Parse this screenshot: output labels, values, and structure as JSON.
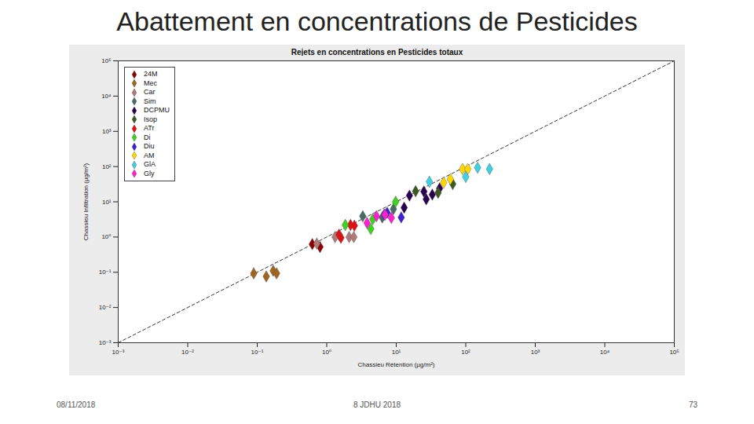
{
  "slide_title": "Abattement en concentrations de Pesticides",
  "footer": [
    "08/11/2018",
    "8 JDHU 2018",
    "73"
  ],
  "chart_data": {
    "type": "scatter",
    "title": "Rejets en concentrations en Pesticides totaux",
    "x_label": "Chassieu Rétention (µg/m²)",
    "y_label": "Chassieu Infiltration (µg/m²)",
    "log": true,
    "grid": false,
    "legend": "top-left",
    "marker": "diamond",
    "xlim": [
      0.001,
      100000
    ],
    "ylim": [
      0.001,
      100000
    ],
    "xticks": [
      {
        "value": 0.001,
        "label": "10⁻³"
      },
      {
        "value": 0.01,
        "label": "10⁻²"
      },
      {
        "value": 0.1,
        "label": "10⁻¹"
      },
      {
        "value": 1,
        "label": "10⁰"
      },
      {
        "value": 10,
        "label": "10¹"
      },
      {
        "value": 100,
        "label": "10²"
      },
      {
        "value": 1000,
        "label": "10³"
      },
      {
        "value": 10000,
        "label": "10⁴"
      },
      {
        "value": 100000,
        "label": "10⁵"
      }
    ],
    "yticks": [
      {
        "value": 0.001,
        "label": "10⁻³"
      },
      {
        "value": 0.01,
        "label": "10⁻²"
      },
      {
        "value": 0.1,
        "label": "10⁻¹"
      },
      {
        "value": 1,
        "label": "10⁰"
      },
      {
        "value": 10,
        "label": "10¹"
      },
      {
        "value": 100,
        "label": "10²"
      },
      {
        "value": 1000,
        "label": "10³"
      },
      {
        "value": 10000,
        "label": "10⁴"
      },
      {
        "value": 100000,
        "label": "10⁵"
      }
    ],
    "series": [
      {
        "name": "24M",
        "color": "#8b0000",
        "x": [
          0.62,
          0.8
        ],
        "values": [
          0.63,
          0.52
        ]
      },
      {
        "name": "Mec",
        "color": "#a0651e",
        "x": [
          0.089,
          0.135,
          0.17,
          0.19
        ],
        "values": [
          0.093,
          0.076,
          0.11,
          0.093
        ]
      },
      {
        "name": "Car",
        "color": "#b07a7a",
        "x": [
          0.72,
          1.32,
          2.1,
          2.45
        ],
        "values": [
          0.65,
          1.0,
          1.0,
          1.0
        ]
      },
      {
        "name": "Sim",
        "color": "#4a6a6a",
        "x": [
          3.3,
          6.3,
          9.1
        ],
        "values": [
          3.9,
          3.6,
          6.2
        ]
      },
      {
        "name": "DCPMU",
        "color": "#2a0050",
        "x": [
          13,
          15.5,
          25,
          27,
          33,
          42
        ],
        "values": [
          6.8,
          15,
          19.5,
          11.8,
          16,
          24
        ]
      },
      {
        "name": "Isop",
        "color": "#3d5a1e",
        "x": [
          19,
          40,
          65
        ],
        "values": [
          20,
          18,
          32
        ]
      },
      {
        "name": "ATr",
        "color": "#e01010",
        "x": [
          1.5,
          1.6,
          2.2,
          2.5
        ],
        "values": [
          1.17,
          0.95,
          2.2,
          2.1
        ]
      },
      {
        "name": "Di",
        "color": "#40d020",
        "x": [
          1.85,
          4.3,
          4.6,
          9.8
        ],
        "values": [
          2.2,
          1.7,
          3.2,
          10
        ]
      },
      {
        "name": "Diu",
        "color": "#4020d0",
        "x": [
          6.7,
          7.4,
          11.8
        ],
        "values": [
          4.3,
          4.9,
          3.6
        ]
      },
      {
        "name": "AM",
        "color": "#ffd700",
        "x": [
          48,
          60,
          90,
          107
        ],
        "values": [
          35,
          44,
          85,
          85
        ]
      },
      {
        "name": "GlA",
        "color": "#40d0e0",
        "x": [
          30,
          100,
          148,
          220
        ],
        "values": [
          37,
          51,
          93,
          85
        ]
      },
      {
        "name": "Gly",
        "color": "#ff20d0",
        "x": [
          3.8,
          5.2,
          6.9,
          8.5
        ],
        "values": [
          2.5,
          3.9,
          4.3,
          3.5
        ]
      }
    ]
  }
}
